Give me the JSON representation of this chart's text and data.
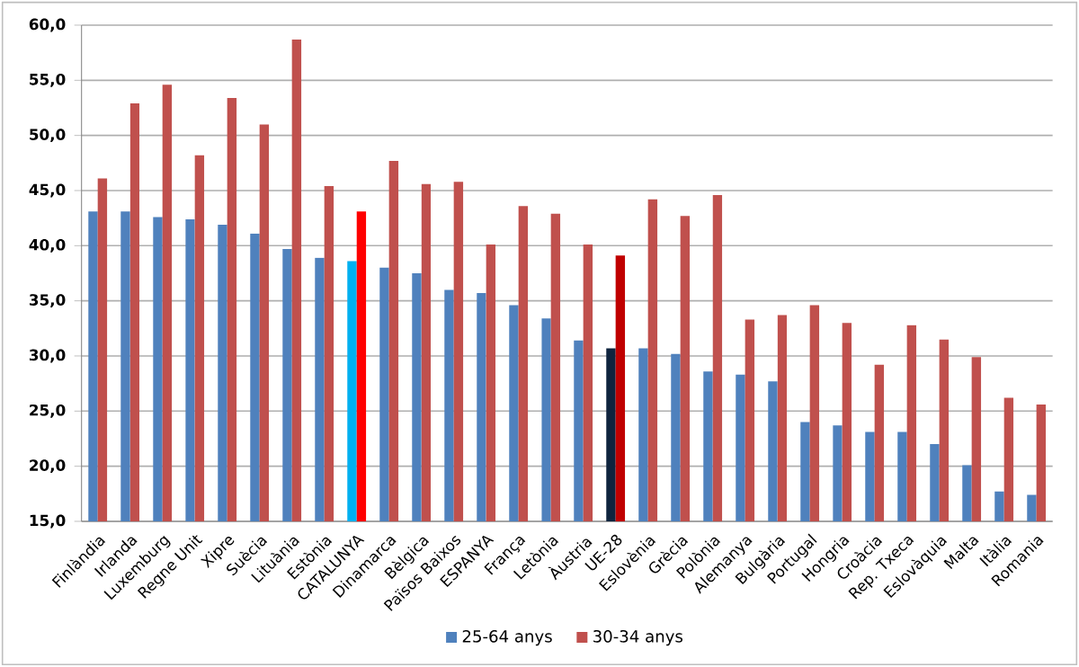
{
  "chart_data": {
    "type": "bar",
    "categories": [
      "Finlàndia",
      "Irlanda",
      "Luxemburg",
      "Regne Unit",
      "Xipre",
      "Suècia",
      "Lituània",
      "Estònia",
      "CATALUNYA",
      "Dinamarca",
      "Bèlgica",
      "Països Baixos",
      "ESPANYA",
      "França",
      "Letònia",
      "Àustria",
      "UE-28",
      "Eslovènia",
      "Grècia",
      "Polònia",
      "Alemanya",
      "Bulgària",
      "Portugal",
      "Hongria",
      "Croàcia",
      "Rep. Txeca",
      "Eslovàquia",
      "Malta",
      "Itàlia",
      "Romania"
    ],
    "series": [
      {
        "name": "25-64 anys",
        "color": "#4f81bd",
        "colors": [
          "#4f81bd",
          "#4f81bd",
          "#4f81bd",
          "#4f81bd",
          "#4f81bd",
          "#4f81bd",
          "#4f81bd",
          "#4f81bd",
          "#00b0f0",
          "#4f81bd",
          "#4f81bd",
          "#4f81bd",
          "#4f81bd",
          "#4f81bd",
          "#4f81bd",
          "#4f81bd",
          "#0f243e",
          "#4f81bd",
          "#4f81bd",
          "#4f81bd",
          "#4f81bd",
          "#4f81bd",
          "#4f81bd",
          "#4f81bd",
          "#4f81bd",
          "#4f81bd",
          "#4f81bd",
          "#4f81bd",
          "#4f81bd",
          "#4f81bd"
        ],
        "values": [
          43.1,
          43.1,
          42.6,
          42.4,
          41.9,
          41.1,
          39.7,
          38.9,
          38.6,
          38.0,
          37.5,
          36.0,
          35.7,
          34.6,
          33.4,
          31.4,
          30.7,
          30.7,
          30.2,
          28.6,
          28.3,
          27.7,
          24.0,
          23.7,
          23.1,
          23.1,
          22.0,
          20.1,
          17.7,
          17.4
        ]
      },
      {
        "name": "30-34 anys",
        "color": "#c0504d",
        "colors": [
          "#c0504d",
          "#c0504d",
          "#c0504d",
          "#c0504d",
          "#c0504d",
          "#c0504d",
          "#c0504d",
          "#c0504d",
          "#ff0000",
          "#c0504d",
          "#c0504d",
          "#c0504d",
          "#c0504d",
          "#c0504d",
          "#c0504d",
          "#c0504d",
          "#c00000",
          "#c0504d",
          "#c0504d",
          "#c0504d",
          "#c0504d",
          "#c0504d",
          "#c0504d",
          "#c0504d",
          "#c0504d",
          "#c0504d",
          "#c0504d",
          "#c0504d",
          "#c0504d",
          "#c0504d"
        ],
        "values": [
          46.1,
          52.9,
          54.6,
          48.2,
          53.4,
          51.0,
          58.7,
          45.4,
          43.1,
          47.7,
          45.6,
          45.8,
          40.1,
          43.6,
          42.9,
          40.1,
          39.1,
          44.2,
          42.7,
          44.6,
          33.3,
          33.7,
          34.6,
          33.0,
          29.2,
          32.8,
          31.5,
          29.9,
          26.2,
          25.6
        ]
      }
    ],
    "ylim": [
      15,
      60
    ],
    "yticks": [
      {
        "value": 15,
        "label": "15,0"
      },
      {
        "value": 20,
        "label": "20,0"
      },
      {
        "value": 25,
        "label": "25,0"
      },
      {
        "value": 30,
        "label": "30,0"
      },
      {
        "value": 35,
        "label": "35,0"
      },
      {
        "value": 40,
        "label": "40,0"
      },
      {
        "value": 45,
        "label": "45,0"
      },
      {
        "value": 50,
        "label": "50,0"
      },
      {
        "value": 55,
        "label": "55,0"
      },
      {
        "value": 60,
        "label": "60,0"
      }
    ],
    "grid": "y",
    "legend": "bottom"
  }
}
